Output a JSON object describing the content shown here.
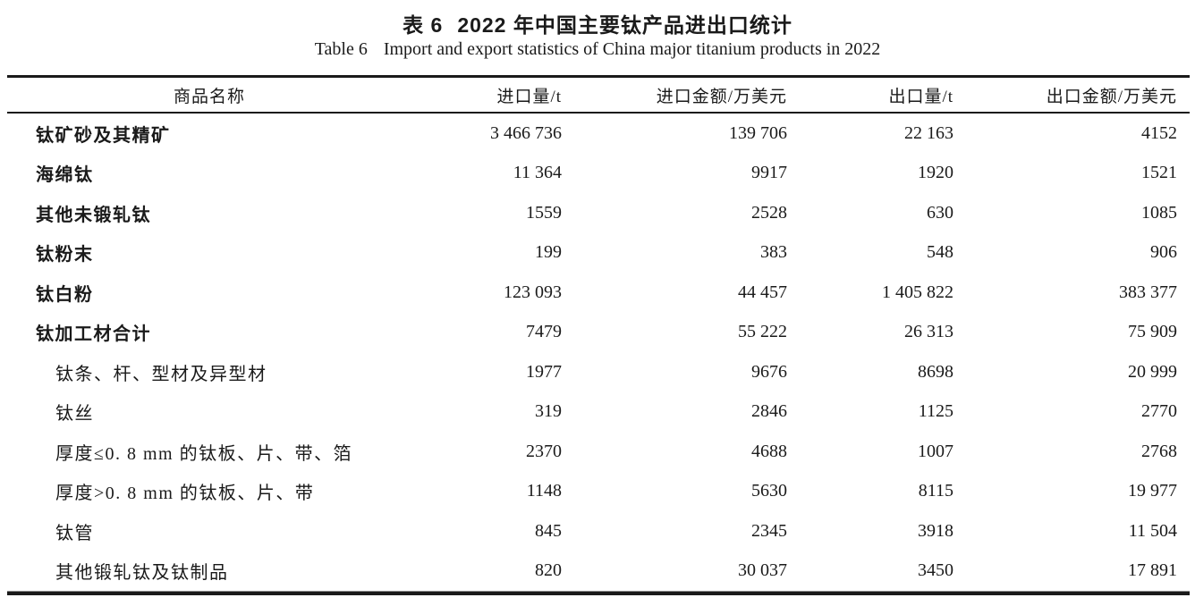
{
  "page": {
    "background": "#ffffff",
    "text_color": "#1a1a1a",
    "rule_color": "#1a1a1a"
  },
  "caption": {
    "zh_label": "表 6",
    "zh_title": "2022 年中国主要钛产品进出口统计",
    "en_label": "Table 6",
    "en_title": "Import and export statistics of China major titanium products in 2022"
  },
  "table": {
    "columns": [
      {
        "key": "name",
        "label": "商品名称"
      },
      {
        "key": "import_qty",
        "label": "进口量/t"
      },
      {
        "key": "import_value",
        "label": "进口金额/万美元"
      },
      {
        "key": "export_qty",
        "label": "出口量/t"
      },
      {
        "key": "export_value",
        "label": "出口金额/万美元"
      }
    ],
    "rows": [
      {
        "name": "钛矿砂及其精矿",
        "level": "main",
        "import_qty": "3 466 736",
        "import_value": "139 706",
        "export_qty": "22 163",
        "export_value": "4152"
      },
      {
        "name": "海绵钛",
        "level": "main",
        "import_qty": "11 364",
        "import_value": "9917",
        "export_qty": "1920",
        "export_value": "1521"
      },
      {
        "name": "其他未锻轧钛",
        "level": "main",
        "import_qty": "1559",
        "import_value": "2528",
        "export_qty": "630",
        "export_value": "1085"
      },
      {
        "name": "钛粉末",
        "level": "main",
        "import_qty": "199",
        "import_value": "383",
        "export_qty": "548",
        "export_value": "906"
      },
      {
        "name": "钛白粉",
        "level": "main",
        "import_qty": "123 093",
        "import_value": "44 457",
        "export_qty": "1 405 822",
        "export_value": "383 377"
      },
      {
        "name": "钛加工材合计",
        "level": "main",
        "import_qty": "7479",
        "import_value": "55 222",
        "export_qty": "26 313",
        "export_value": "75 909"
      },
      {
        "name": "钛条、杆、型材及异型材",
        "level": "sub",
        "import_qty": "1977",
        "import_value": "9676",
        "export_qty": "8698",
        "export_value": "20 999"
      },
      {
        "name": "钛丝",
        "level": "sub",
        "import_qty": "319",
        "import_value": "2846",
        "export_qty": "1125",
        "export_value": "2770"
      },
      {
        "name": "厚度≤0. 8 mm 的钛板、片、带、箔",
        "level": "sub",
        "import_qty": "2370",
        "import_value": "4688",
        "export_qty": "1007",
        "export_value": "2768"
      },
      {
        "name": "厚度>0. 8 mm 的钛板、片、带",
        "level": "sub",
        "import_qty": "1148",
        "import_value": "5630",
        "export_qty": "8115",
        "export_value": "19 977"
      },
      {
        "name": "钛管",
        "level": "sub",
        "import_qty": "845",
        "import_value": "2345",
        "export_qty": "3918",
        "export_value": "11 504"
      },
      {
        "name": "其他锻轧钛及钛制品",
        "level": "sub",
        "import_qty": "820",
        "import_value": "30 037",
        "export_qty": "3450",
        "export_value": "17 891"
      }
    ]
  }
}
